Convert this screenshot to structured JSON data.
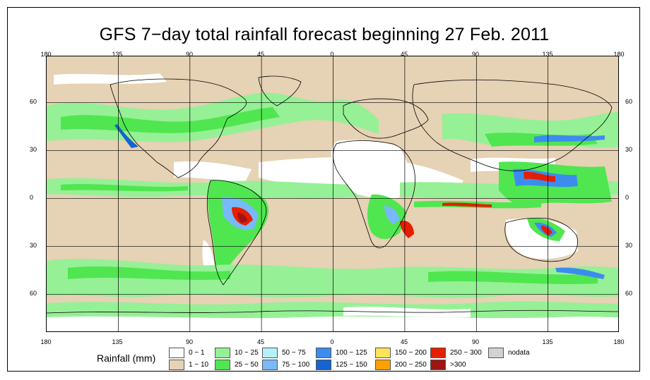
{
  "title": "GFS 7−day total rainfall forecast beginning 27 Feb. 2011",
  "axes": {
    "lon_labels": [
      "180",
      "135",
      "90",
      "45",
      "0",
      "45",
      "90",
      "135",
      "180"
    ],
    "lat_labels": [
      "60",
      "30",
      "0",
      "30",
      "60"
    ]
  },
  "legend": {
    "title": "Rainfall (mm)",
    "items": [
      {
        "label": "0 − 1",
        "color": "#ffffff"
      },
      {
        "label": "1 − 10",
        "color": "#e6d2b4"
      },
      {
        "label": "10 − 25",
        "color": "#96f096"
      },
      {
        "label": "25 − 50",
        "color": "#50e650"
      },
      {
        "label": "50 − 75",
        "color": "#b4f0fa"
      },
      {
        "label": "75 − 100",
        "color": "#78b9fa"
      },
      {
        "label": "100 − 125",
        "color": "#3c8cf0"
      },
      {
        "label": "125 − 150",
        "color": "#1464d2"
      },
      {
        "label": "150 − 200",
        "color": "#ffe15a"
      },
      {
        "label": "200 − 250",
        "color": "#ffa000"
      },
      {
        "label": "250 − 300",
        "color": "#e61e00"
      },
      {
        "label": ">300",
        "color": "#a01414"
      },
      {
        "label": "nodata",
        "color": "#d2d2d2"
      }
    ]
  }
}
